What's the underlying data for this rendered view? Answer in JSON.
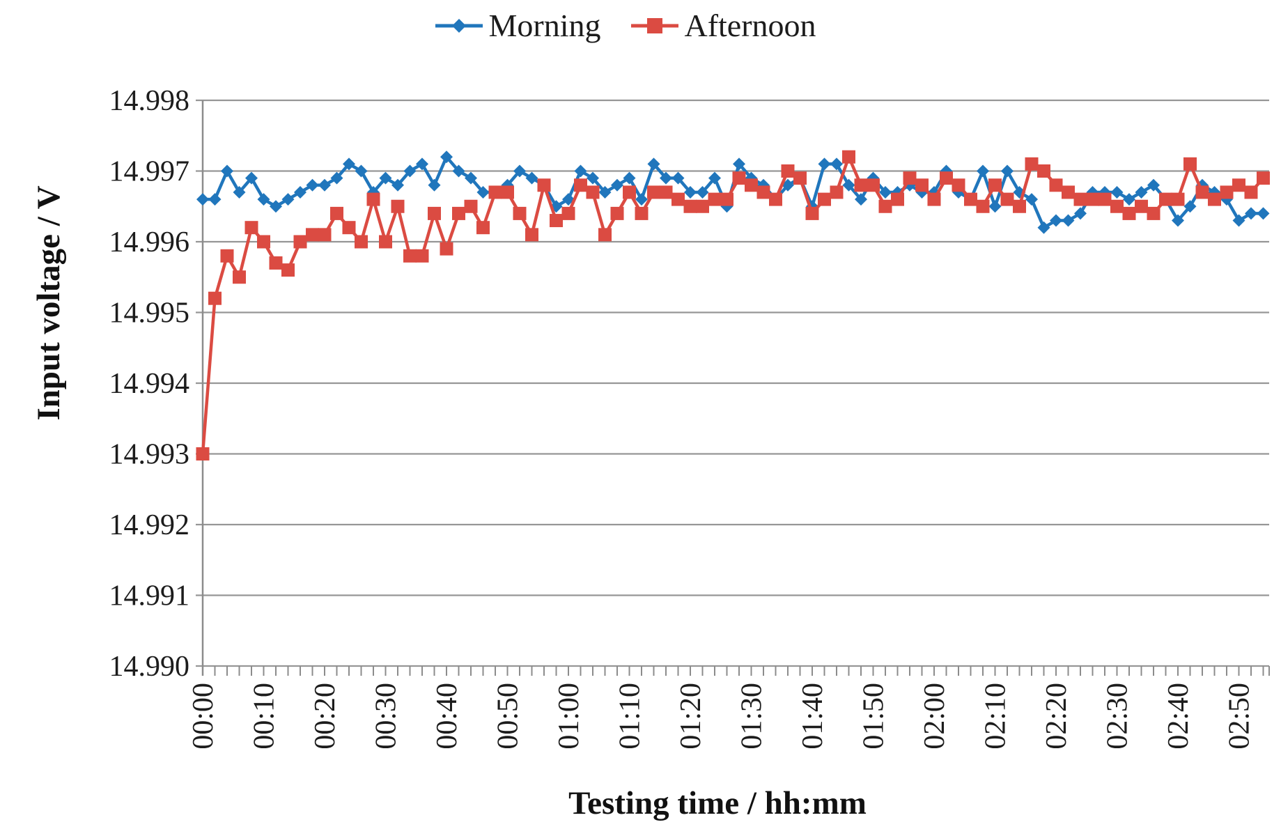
{
  "legend": {
    "items": [
      {
        "label": "Morning"
      },
      {
        "label": "Afternoon"
      }
    ]
  },
  "chart_data": {
    "type": "line",
    "title": "",
    "xlabel": "Testing time / hh:mm",
    "ylabel": "Input voltage / V",
    "ylim": [
      14.99,
      14.998
    ],
    "y_tick_step": 0.001,
    "y_tick_labels": [
      "14.990",
      "14.991",
      "14.992",
      "14.993",
      "14.994",
      "14.995",
      "14.996",
      "14.997",
      "14.998"
    ],
    "x_start": "00:00",
    "x_step_minutes": 2,
    "x_tick_interval_minutes": 10,
    "x_tick_labels": [
      "00:00",
      "00:10",
      "00:20",
      "00:30",
      "00:40",
      "00:50",
      "01:00",
      "01:10",
      "01:20",
      "01:30",
      "01:40",
      "01:50",
      "02:00",
      "02:10",
      "02:20",
      "02:30",
      "02:40",
      "02:50"
    ],
    "grid": "horizontal",
    "legend_position": "top",
    "axis_color": "#8c8c8c",
    "grid_color": "#969696",
    "series": [
      {
        "name": "Morning",
        "color": "#2076bc",
        "marker": "diamond",
        "values": [
          14.9966,
          14.9966,
          14.997,
          14.9967,
          14.9969,
          14.9966,
          14.9965,
          14.9966,
          14.9967,
          14.9968,
          14.9968,
          14.9969,
          14.9971,
          14.997,
          14.9967,
          14.9969,
          14.9968,
          14.997,
          14.9971,
          14.9968,
          14.9972,
          14.997,
          14.9969,
          14.9967,
          14.9967,
          14.9968,
          14.997,
          14.9969,
          14.9968,
          14.9965,
          14.9966,
          14.997,
          14.9969,
          14.9967,
          14.9968,
          14.9969,
          14.9966,
          14.9971,
          14.9969,
          14.9969,
          14.9967,
          14.9967,
          14.9969,
          14.9965,
          14.9971,
          14.9969,
          14.9968,
          14.9966,
          14.9968,
          14.9969,
          14.9965,
          14.9971,
          14.9971,
          14.9968,
          14.9966,
          14.9969,
          14.9967,
          14.9967,
          14.9968,
          14.9967,
          14.9967,
          14.997,
          14.9967,
          14.9966,
          14.997,
          14.9965,
          14.997,
          14.9967,
          14.9966,
          14.9962,
          14.9963,
          14.9963,
          14.9964,
          14.9967,
          14.9967,
          14.9967,
          14.9966,
          14.9967,
          14.9968,
          14.9966,
          14.9963,
          14.9965,
          14.9968,
          14.9967,
          14.9966,
          14.9963,
          14.9964,
          14.9964
        ]
      },
      {
        "name": "Afternoon",
        "color": "#db4b42",
        "marker": "square",
        "values": [
          14.993,
          14.9952,
          14.9958,
          14.9955,
          14.9962,
          14.996,
          14.9957,
          14.9956,
          14.996,
          14.9961,
          14.9961,
          14.9964,
          14.9962,
          14.996,
          14.9966,
          14.996,
          14.9965,
          14.9958,
          14.9958,
          14.9964,
          14.9959,
          14.9964,
          14.9965,
          14.9962,
          14.9967,
          14.9967,
          14.9964,
          14.9961,
          14.9968,
          14.9963,
          14.9964,
          14.9968,
          14.9967,
          14.9961,
          14.9964,
          14.9967,
          14.9964,
          14.9967,
          14.9967,
          14.9966,
          14.9965,
          14.9965,
          14.9966,
          14.9966,
          14.9969,
          14.9968,
          14.9967,
          14.9966,
          14.997,
          14.9969,
          14.9964,
          14.9966,
          14.9967,
          14.9972,
          14.9968,
          14.9968,
          14.9965,
          14.9966,
          14.9969,
          14.9968,
          14.9966,
          14.9969,
          14.9968,
          14.9966,
          14.9965,
          14.9968,
          14.9966,
          14.9965,
          14.9971,
          14.997,
          14.9968,
          14.9967,
          14.9966,
          14.9966,
          14.9966,
          14.9965,
          14.9964,
          14.9965,
          14.9964,
          14.9966,
          14.9966,
          14.9971,
          14.9967,
          14.9966,
          14.9967,
          14.9968,
          14.9967,
          14.9969
        ]
      }
    ]
  }
}
